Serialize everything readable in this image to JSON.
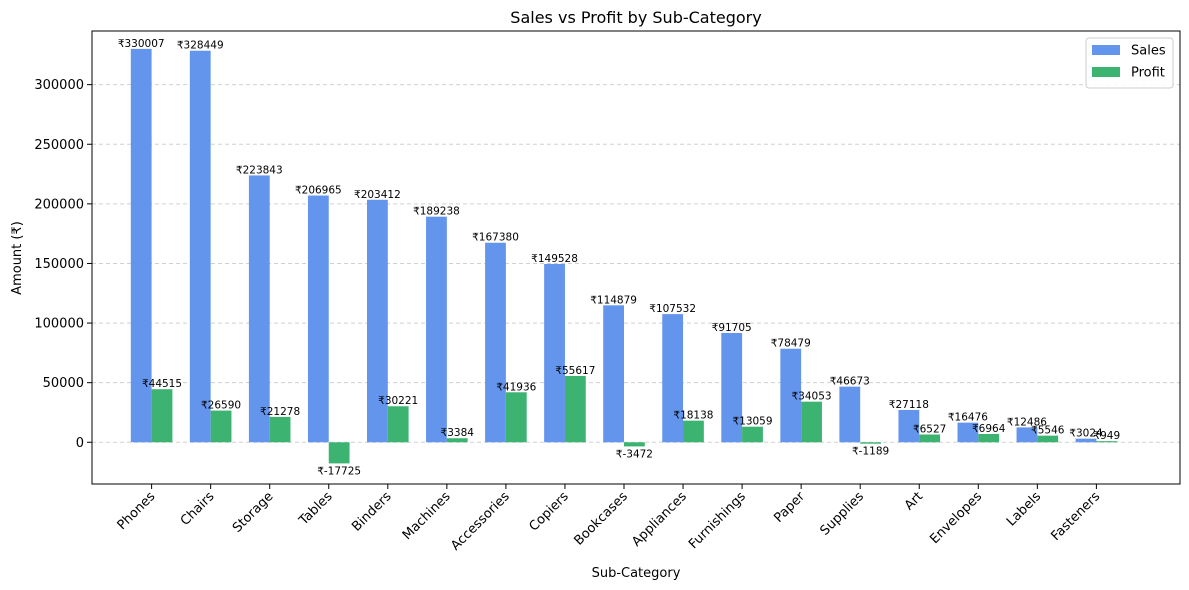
{
  "chart_data": {
    "type": "bar",
    "title": "Sales vs Profit by Sub-Category",
    "xlabel": "Sub-Category",
    "ylabel": "Amount (₹)",
    "ylim": [
      -35000,
      345000
    ],
    "yticks": [
      0,
      50000,
      100000,
      150000,
      200000,
      250000,
      300000
    ],
    "grid": "y-dashed",
    "legend_position": "top-right",
    "value_prefix": "₹",
    "categories": [
      "Phones",
      "Chairs",
      "Storage",
      "Tables",
      "Binders",
      "Machines",
      "Accessories",
      "Copiers",
      "Bookcases",
      "Appliances",
      "Furnishings",
      "Paper",
      "Supplies",
      "Art",
      "Envelopes",
      "Labels",
      "Fasteners"
    ],
    "series": [
      {
        "name": "Sales",
        "color": "#6495ED",
        "values": [
          330007,
          328449,
          223843,
          206965,
          203412,
          189238,
          167380,
          149528,
          114879,
          107532,
          91705,
          78479,
          46673,
          27118,
          16476,
          12486,
          3024
        ]
      },
      {
        "name": "Profit",
        "color": "#3CB371",
        "values": [
          44515,
          26590,
          21278,
          -17725,
          30221,
          3384,
          41936,
          55617,
          -3472,
          18138,
          13059,
          34053,
          -1189,
          6527,
          6964,
          5546,
          949
        ]
      }
    ]
  }
}
